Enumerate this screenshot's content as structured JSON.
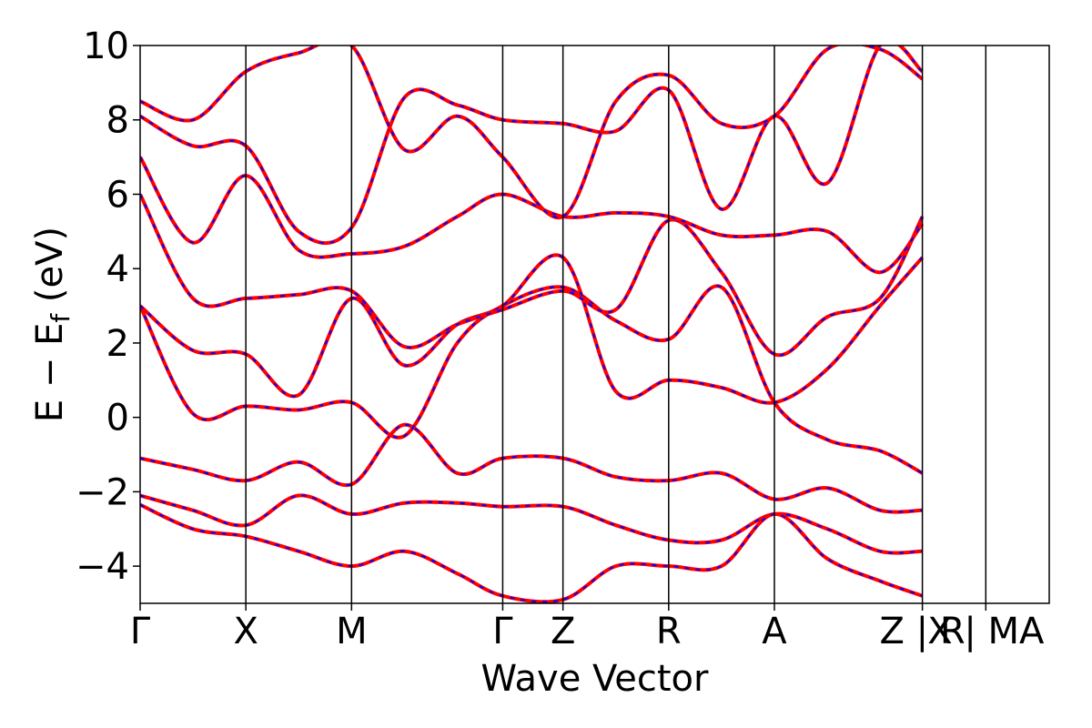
{
  "chart_data": {
    "type": "line",
    "title": "",
    "xlabel": "Wave Vector",
    "ylabel": "E − E_f (eV)",
    "ylabel_parts": {
      "main": "E − E",
      "sub": "f",
      "unit": " (eV)"
    },
    "ylim": [
      -5,
      10
    ],
    "yticks": [
      -4,
      -2,
      0,
      2,
      4,
      6,
      8,
      10
    ],
    "ytick_labels": [
      "−4",
      "−2",
      "0",
      "2",
      "4",
      "6",
      "8",
      "10"
    ],
    "x_range": [
      0,
      8.6
    ],
    "kpoints": [
      {
        "label": "Γ",
        "x": 0.0
      },
      {
        "label": "X",
        "x": 1.0
      },
      {
        "label": "M",
        "x": 2.0
      },
      {
        "label": "Γ",
        "x": 3.43
      },
      {
        "label": "Z",
        "x": 4.0
      },
      {
        "label": "R",
        "x": 5.0
      },
      {
        "label": "A",
        "x": 6.0
      },
      {
        "label": "Z | R",
        "x": 7.4
      },
      {
        "label": "X | MA",
        "x": 8.0
      },
      {
        "label": "",
        "x": 8.6
      }
    ],
    "grid": false,
    "legend": "none",
    "colors": {
      "series_a": "#ff0000",
      "series_b": "#0000ff"
    },
    "series": [
      {
        "values": [
          [
            0,
            -1.1
          ],
          [
            0.5,
            -1.4
          ],
          [
            1,
            -1.7
          ],
          [
            1.5,
            -1.2
          ],
          [
            2,
            -1.8
          ],
          [
            2.5,
            -0.2
          ],
          [
            3,
            -1.5
          ],
          [
            3.43,
            -1.1
          ],
          [
            4,
            -1.1
          ],
          [
            4.5,
            -1.6
          ],
          [
            5,
            -1.7
          ],
          [
            5.5,
            -1.5
          ],
          [
            6,
            -2.2
          ],
          [
            6.5,
            -1.9
          ],
          [
            7,
            -2.5
          ],
          [
            7.4,
            -2.5
          ]
        ]
      },
      {
        "values": [
          [
            0,
            -2.1
          ],
          [
            0.5,
            -2.5
          ],
          [
            1,
            -2.9
          ],
          [
            1.5,
            -2.1
          ],
          [
            2,
            -2.6
          ],
          [
            2.5,
            -2.3
          ],
          [
            3,
            -2.3
          ],
          [
            3.43,
            -2.4
          ],
          [
            4,
            -2.4
          ],
          [
            4.5,
            -2.9
          ],
          [
            5,
            -3.3
          ],
          [
            5.5,
            -3.3
          ],
          [
            6,
            -2.6
          ],
          [
            6.5,
            -3.0
          ],
          [
            7,
            -3.6
          ],
          [
            7.4,
            -3.6
          ]
        ]
      },
      {
        "values": [
          [
            0,
            -2.35
          ],
          [
            0.5,
            -3.0
          ],
          [
            1,
            -3.2
          ],
          [
            1.5,
            -3.6
          ],
          [
            2,
            -4.0
          ],
          [
            2.5,
            -3.6
          ],
          [
            3,
            -4.2
          ],
          [
            3.43,
            -4.8
          ],
          [
            4,
            -4.9
          ],
          [
            4.5,
            -4.0
          ],
          [
            5,
            -4.0
          ],
          [
            5.5,
            -4.0
          ],
          [
            6,
            -2.6
          ],
          [
            6.5,
            -3.8
          ],
          [
            7,
            -4.4
          ],
          [
            7.4,
            -4.8
          ]
        ]
      },
      {
        "values": [
          [
            0,
            3.0
          ],
          [
            0.5,
            0.1
          ],
          [
            1,
            0.3
          ],
          [
            1.5,
            0.2
          ],
          [
            2,
            0.4
          ],
          [
            2.5,
            -0.5
          ],
          [
            3,
            2.0
          ],
          [
            3.43,
            3.0
          ],
          [
            4,
            3.5
          ],
          [
            4.5,
            2.6
          ],
          [
            5,
            2.1
          ],
          [
            5.5,
            3.5
          ],
          [
            6,
            0.4
          ],
          [
            6.5,
            -0.6
          ],
          [
            7,
            -0.9
          ],
          [
            7.4,
            -1.5
          ]
        ]
      },
      {
        "values": [
          [
            0,
            3.0
          ],
          [
            0.5,
            1.8
          ],
          [
            1,
            1.7
          ],
          [
            1.5,
            0.6
          ],
          [
            2,
            3.2
          ],
          [
            2.5,
            1.4
          ],
          [
            3,
            2.5
          ],
          [
            3.43,
            3.0
          ],
          [
            4,
            4.3
          ],
          [
            4.5,
            0.7
          ],
          [
            5,
            1.0
          ],
          [
            5.5,
            0.8
          ],
          [
            6,
            0.4
          ],
          [
            6.5,
            1.3
          ],
          [
            7,
            3.0
          ],
          [
            7.4,
            4.3
          ]
        ]
      },
      {
        "values": [
          [
            0,
            6.0
          ],
          [
            0.5,
            3.2
          ],
          [
            1,
            3.2
          ],
          [
            1.5,
            3.3
          ],
          [
            2,
            3.4
          ],
          [
            2.5,
            1.9
          ],
          [
            3,
            2.5
          ],
          [
            3.43,
            2.9
          ],
          [
            4,
            3.4
          ],
          [
            4.5,
            2.9
          ],
          [
            5,
            5.3
          ],
          [
            5.5,
            3.9
          ],
          [
            6,
            1.7
          ],
          [
            6.5,
            2.7
          ],
          [
            7,
            3.2
          ],
          [
            7.4,
            5.4
          ]
        ]
      },
      {
        "values": [
          [
            0,
            7.0
          ],
          [
            0.5,
            4.7
          ],
          [
            1,
            6.5
          ],
          [
            1.5,
            4.5
          ],
          [
            2,
            4.4
          ],
          [
            2.5,
            4.6
          ],
          [
            3,
            5.4
          ],
          [
            3.43,
            6.0
          ],
          [
            4,
            5.4
          ],
          [
            4.5,
            5.5
          ],
          [
            5,
            5.4
          ],
          [
            5.5,
            4.9
          ],
          [
            6,
            4.9
          ],
          [
            6.5,
            5.0
          ],
          [
            7,
            3.9
          ],
          [
            7.4,
            5.2
          ]
        ]
      },
      {
        "values": [
          [
            0,
            8.1
          ],
          [
            0.5,
            7.3
          ],
          [
            1,
            7.3
          ],
          [
            1.5,
            5.0
          ],
          [
            2,
            5.1
          ],
          [
            2.5,
            8.6
          ],
          [
            3,
            8.4
          ],
          [
            3.43,
            8.0
          ],
          [
            4,
            7.9
          ],
          [
            4.5,
            7.7
          ],
          [
            5,
            8.8
          ],
          [
            5.5,
            5.6
          ],
          [
            6,
            8.1
          ],
          [
            6.5,
            6.3
          ],
          [
            7,
            10.0
          ],
          [
            7.4,
            9.3
          ]
        ]
      },
      {
        "values": [
          [
            0,
            8.5
          ],
          [
            0.5,
            8.0
          ],
          [
            1,
            9.3
          ],
          [
            1.5,
            9.8
          ],
          [
            2,
            10.0
          ],
          [
            2.5,
            7.2
          ],
          [
            3,
            8.1
          ],
          [
            3.43,
            7.0
          ],
          [
            4,
            5.4
          ],
          [
            4.5,
            8.5
          ],
          [
            5,
            9.2
          ],
          [
            5.5,
            7.9
          ],
          [
            6,
            8.1
          ],
          [
            6.5,
            9.9
          ],
          [
            7,
            9.9
          ],
          [
            7.4,
            9.1
          ]
        ]
      }
    ]
  }
}
